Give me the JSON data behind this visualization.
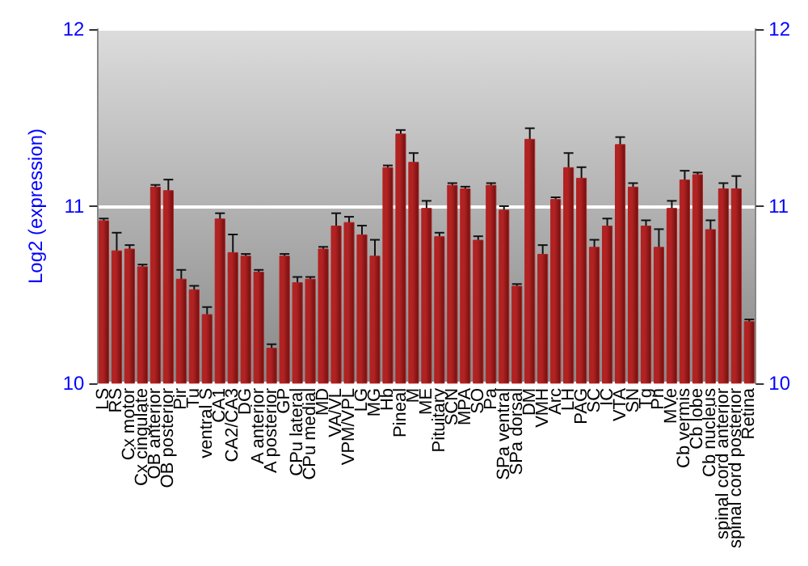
{
  "chart_data": {
    "type": "bar",
    "ylabel": "Log2 (expression)",
    "categories": [
      "LS",
      "RS",
      "Cx motor",
      "Cx cingulate",
      "OB anterior",
      "OB posterior",
      "Pir",
      "Tu",
      "ventral S",
      "CA1",
      "CA2/CA3",
      "DG",
      "A anterior",
      "A posterior",
      "GP",
      "CPu lateral",
      "CPu medial",
      "MD",
      "VA/VL",
      "VPM/VPL",
      "LG",
      "MG",
      "Hb",
      "Pineal",
      "M",
      "ME",
      "Pituitary",
      "SCN",
      "MPA",
      "SO",
      "Pa",
      "SPa ventral",
      "SPa dorsal",
      "DM",
      "VMH",
      "Arc",
      "LH",
      "PAG",
      "SC",
      "IC",
      "VTA",
      "SN",
      "Tg",
      "Pn",
      "MVe",
      "Cb vermis",
      "Cb lobe",
      "Cb nucleus",
      "spinal cord anterior",
      "spinal cord posterior",
      "Retina"
    ],
    "values": [
      10.92,
      10.75,
      10.76,
      10.66,
      11.11,
      11.09,
      10.59,
      10.53,
      10.39,
      10.93,
      10.74,
      10.72,
      10.63,
      10.2,
      10.72,
      10.57,
      10.59,
      10.76,
      10.89,
      10.91,
      10.84,
      10.72,
      11.22,
      11.41,
      11.25,
      10.99,
      10.83,
      11.12,
      11.1,
      10.81,
      11.12,
      10.98,
      10.55,
      11.38,
      10.73,
      11.04,
      11.22,
      11.16,
      10.77,
      10.89,
      11.35,
      11.11,
      10.89,
      10.77,
      10.99,
      11.15,
      11.18,
      10.87,
      11.1,
      11.1,
      10.35
    ],
    "errors": [
      0.01,
      0.1,
      0.02,
      0.01,
      0.01,
      0.06,
      0.05,
      0.02,
      0.04,
      0.03,
      0.1,
      0.01,
      0.01,
      0.02,
      0.01,
      0.03,
      0.01,
      0.01,
      0.07,
      0.03,
      0.05,
      0.09,
      0.01,
      0.02,
      0.05,
      0.04,
      0.02,
      0.01,
      0.01,
      0.02,
      0.01,
      0.02,
      0.01,
      0.06,
      0.05,
      0.01,
      0.08,
      0.06,
      0.04,
      0.04,
      0.04,
      0.02,
      0.03,
      0.1,
      0.04,
      0.05,
      0.01,
      0.05,
      0.03,
      0.07,
      0.01
    ],
    "color": "#b22222",
    "ylim": [
      10,
      12
    ],
    "yticks": [
      10,
      11,
      12
    ],
    "y2lim": [
      10,
      12
    ],
    "y2ticks": [
      10,
      11,
      12
    ],
    "grid": "y"
  }
}
